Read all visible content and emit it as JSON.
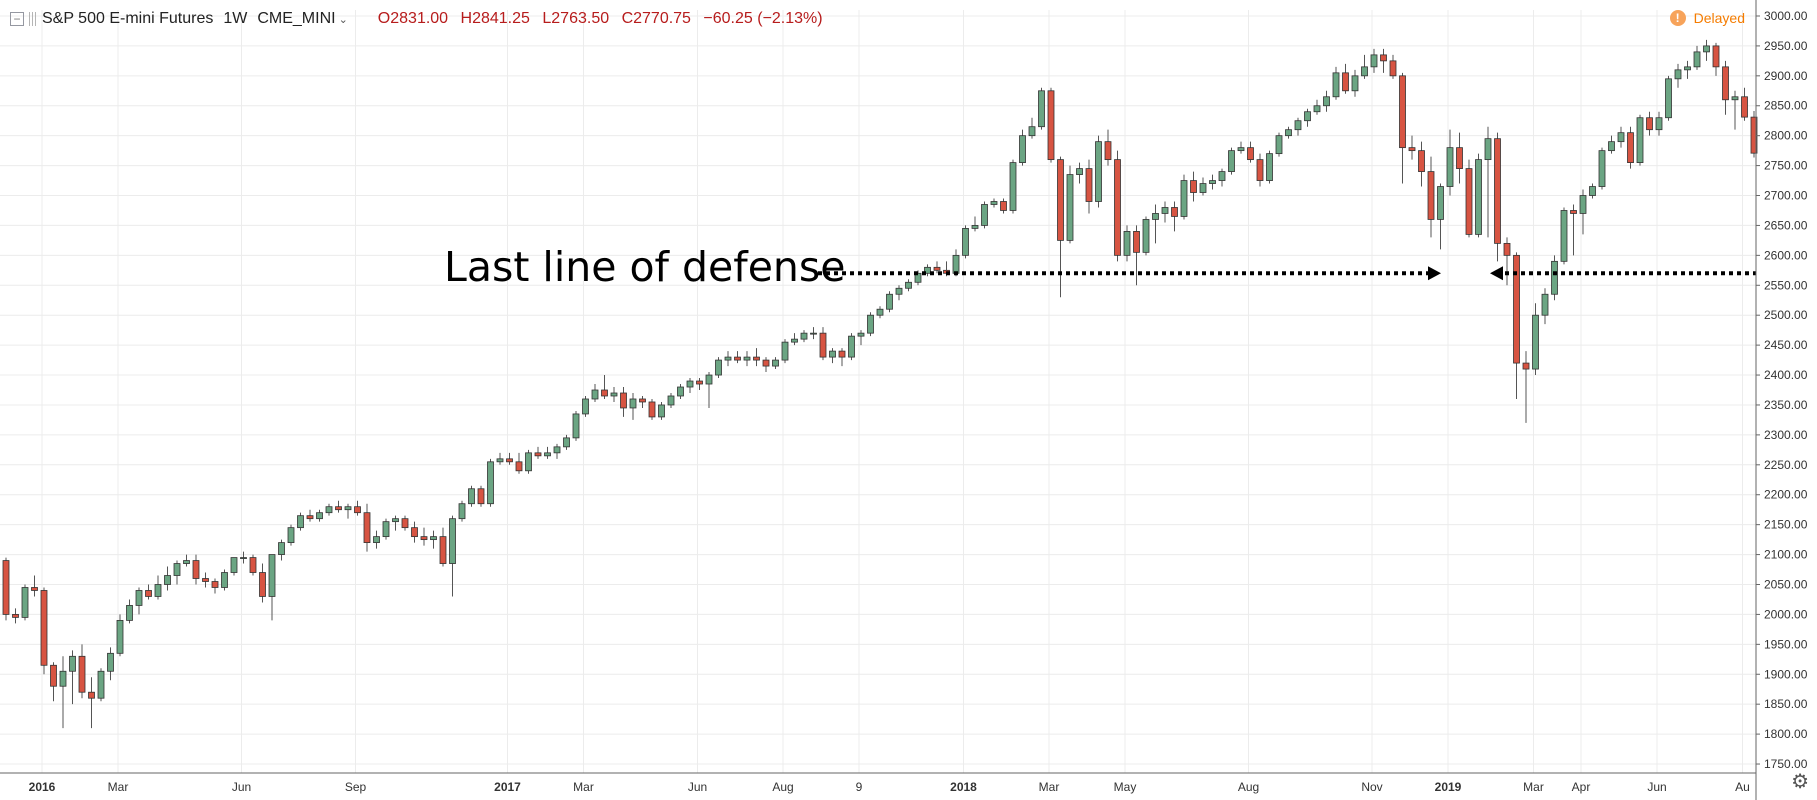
{
  "header": {
    "symbol": "S&P 500 E-mini Futures",
    "interval": "1W",
    "exchange": "CME_MINI",
    "open": "O2831.00",
    "high": "H2841.25",
    "low": "L2763.50",
    "close": "C2770.75",
    "change": "−60.25 (−2.13%)",
    "delayed_label": "Delayed",
    "delayed_icon": "!"
  },
  "colors": {
    "up": "#6ba583",
    "down": "#d75442",
    "grid": "#ececec",
    "ohlc_text": "#b71c1c",
    "delayed": "#f57c00"
  },
  "icons": {
    "collapse": "collapse-icon",
    "drag": "drag-handle-icon",
    "chevron": "chevron-down-icon",
    "delayed": "warning-icon",
    "settings": "gear-icon"
  },
  "chart_data": {
    "type": "candlestick",
    "title": "S&P 500 E-mini Futures · 1W · CME_MINI",
    "ylim": [
      1735,
      3010
    ],
    "y_ticks": [
      1750,
      1800,
      1850,
      1900,
      1950,
      2000,
      2050,
      2100,
      2150,
      2200,
      2250,
      2300,
      2350,
      2400,
      2450,
      2500,
      2550,
      2600,
      2650,
      2700,
      2750,
      2800,
      2850,
      2900,
      2950,
      3000
    ],
    "y_tick_labels": [
      "1750.00",
      "1800.00",
      "1850.00",
      "1900.00",
      "1950.00",
      "2000.00",
      "2050.00",
      "2100.00",
      "2150.00",
      "2200.00",
      "2250.00",
      "2300.00",
      "2350.00",
      "2400.00",
      "2450.00",
      "2500.00",
      "2550.00",
      "2600.00",
      "2650.00",
      "2700.00",
      "2750.00",
      "2800.00",
      "2850.00",
      "2900.00",
      "2950.00",
      "3000.00"
    ],
    "x_labels": [
      {
        "label": "2016",
        "week": 4,
        "major": true
      },
      {
        "label": "Mar",
        "week": 12,
        "major": false
      },
      {
        "label": "Jun",
        "week": 25,
        "major": false
      },
      {
        "label": "Sep",
        "week": 37,
        "major": false
      },
      {
        "label": "2017",
        "week": 53,
        "major": true
      },
      {
        "label": "Mar",
        "week": 61,
        "major": false
      },
      {
        "label": "Jun",
        "week": 73,
        "major": false
      },
      {
        "label": "Aug",
        "week": 82,
        "major": false
      },
      {
        "label": "9",
        "week": 90,
        "major": false
      },
      {
        "label": "2018",
        "week": 101,
        "major": true
      },
      {
        "label": "Mar",
        "week": 110,
        "major": false
      },
      {
        "label": "May",
        "week": 118,
        "major": false
      },
      {
        "label": "Aug",
        "week": 131,
        "major": false
      },
      {
        "label": "Nov",
        "week": 144,
        "major": false
      },
      {
        "label": "2019",
        "week": 152,
        "major": true
      },
      {
        "label": "Mar",
        "week": 161,
        "major": false
      },
      {
        "label": "Apr",
        "week": 166,
        "major": false
      },
      {
        "label": "Jun",
        "week": 174,
        "major": false
      },
      {
        "label": "Au",
        "week": 183,
        "major": false
      }
    ],
    "candles": [
      [
        2090,
        2095,
        1990,
        2000
      ],
      [
        2000,
        2010,
        1985,
        1995
      ],
      [
        1995,
        2050,
        1990,
        2045
      ],
      [
        2045,
        2065,
        2030,
        2040
      ],
      [
        2040,
        2045,
        1900,
        1915
      ],
      [
        1915,
        1920,
        1855,
        1880
      ],
      [
        1880,
        1930,
        1810,
        1905
      ],
      [
        1905,
        1940,
        1850,
        1930
      ],
      [
        1930,
        1950,
        1860,
        1870
      ],
      [
        1870,
        1895,
        1810,
        1860
      ],
      [
        1860,
        1910,
        1855,
        1905
      ],
      [
        1905,
        1945,
        1890,
        1935
      ],
      [
        1935,
        2000,
        1930,
        1990
      ],
      [
        1990,
        2025,
        1985,
        2015
      ],
      [
        2015,
        2045,
        2000,
        2040
      ],
      [
        2040,
        2050,
        2025,
        2030
      ],
      [
        2030,
        2065,
        2025,
        2050
      ],
      [
        2050,
        2080,
        2040,
        2065
      ],
      [
        2065,
        2090,
        2050,
        2085
      ],
      [
        2085,
        2100,
        2080,
        2090
      ],
      [
        2090,
        2100,
        2050,
        2060
      ],
      [
        2060,
        2070,
        2045,
        2055
      ],
      [
        2055,
        2060,
        2035,
        2045
      ],
      [
        2045,
        2075,
        2040,
        2070
      ],
      [
        2070,
        2095,
        2065,
        2095
      ],
      [
        2095,
        2105,
        2085,
        2095
      ],
      [
        2095,
        2100,
        2065,
        2070
      ],
      [
        2070,
        2085,
        2020,
        2030
      ],
      [
        2030,
        2100,
        1990,
        2100
      ],
      [
        2100,
        2125,
        2090,
        2120
      ],
      [
        2120,
        2150,
        2115,
        2145
      ],
      [
        2145,
        2170,
        2140,
        2165
      ],
      [
        2165,
        2175,
        2155,
        2160
      ],
      [
        2160,
        2175,
        2155,
        2170
      ],
      [
        2170,
        2185,
        2165,
        2180
      ],
      [
        2180,
        2190,
        2170,
        2175
      ],
      [
        2175,
        2185,
        2160,
        2180
      ],
      [
        2180,
        2190,
        2165,
        2170
      ],
      [
        2170,
        2185,
        2105,
        2120
      ],
      [
        2120,
        2140,
        2110,
        2130
      ],
      [
        2130,
        2160,
        2125,
        2155
      ],
      [
        2155,
        2165,
        2140,
        2160
      ],
      [
        2160,
        2165,
        2140,
        2145
      ],
      [
        2145,
        2155,
        2120,
        2130
      ],
      [
        2130,
        2145,
        2115,
        2125
      ],
      [
        2125,
        2140,
        2110,
        2130
      ],
      [
        2130,
        2145,
        2080,
        2085
      ],
      [
        2085,
        2165,
        2030,
        2160
      ],
      [
        2160,
        2190,
        2155,
        2185
      ],
      [
        2185,
        2215,
        2180,
        2210
      ],
      [
        2210,
        2215,
        2180,
        2185
      ],
      [
        2185,
        2260,
        2180,
        2255
      ],
      [
        2255,
        2270,
        2250,
        2260
      ],
      [
        2260,
        2270,
        2250,
        2255
      ],
      [
        2255,
        2270,
        2235,
        2240
      ],
      [
        2240,
        2275,
        2235,
        2270
      ],
      [
        2270,
        2280,
        2260,
        2265
      ],
      [
        2265,
        2280,
        2260,
        2270
      ],
      [
        2270,
        2285,
        2260,
        2280
      ],
      [
        2280,
        2300,
        2275,
        2295
      ],
      [
        2295,
        2340,
        2290,
        2335
      ],
      [
        2335,
        2365,
        2330,
        2360
      ],
      [
        2360,
        2385,
        2355,
        2375
      ],
      [
        2375,
        2400,
        2360,
        2365
      ],
      [
        2365,
        2380,
        2355,
        2370
      ],
      [
        2370,
        2380,
        2330,
        2345
      ],
      [
        2345,
        2370,
        2325,
        2360
      ],
      [
        2360,
        2365,
        2345,
        2355
      ],
      [
        2355,
        2360,
        2325,
        2330
      ],
      [
        2330,
        2355,
        2325,
        2350
      ],
      [
        2350,
        2370,
        2345,
        2365
      ],
      [
        2365,
        2385,
        2360,
        2380
      ],
      [
        2380,
        2395,
        2370,
        2390
      ],
      [
        2390,
        2395,
        2375,
        2385
      ],
      [
        2385,
        2405,
        2345,
        2400
      ],
      [
        2400,
        2430,
        2395,
        2425
      ],
      [
        2425,
        2440,
        2415,
        2430
      ],
      [
        2430,
        2440,
        2420,
        2425
      ],
      [
        2425,
        2440,
        2415,
        2430
      ],
      [
        2430,
        2445,
        2415,
        2425
      ],
      [
        2425,
        2430,
        2405,
        2415
      ],
      [
        2415,
        2430,
        2410,
        2425
      ],
      [
        2425,
        2460,
        2420,
        2455
      ],
      [
        2455,
        2470,
        2450,
        2460
      ],
      [
        2460,
        2475,
        2455,
        2470
      ],
      [
        2470,
        2480,
        2460,
        2470
      ],
      [
        2470,
        2480,
        2425,
        2430
      ],
      [
        2430,
        2445,
        2420,
        2440
      ],
      [
        2440,
        2445,
        2415,
        2430
      ],
      [
        2430,
        2470,
        2425,
        2465
      ],
      [
        2465,
        2475,
        2450,
        2470
      ],
      [
        2470,
        2505,
        2465,
        2500
      ],
      [
        2500,
        2515,
        2495,
        2510
      ],
      [
        2510,
        2540,
        2505,
        2535
      ],
      [
        2535,
        2550,
        2525,
        2545
      ],
      [
        2545,
        2560,
        2540,
        2555
      ],
      [
        2555,
        2575,
        2550,
        2570
      ],
      [
        2570,
        2585,
        2565,
        2580
      ],
      [
        2580,
        2590,
        2570,
        2575
      ],
      [
        2575,
        2590,
        2565,
        2570
      ],
      [
        2570,
        2610,
        2565,
        2600
      ],
      [
        2600,
        2650,
        2595,
        2645
      ],
      [
        2645,
        2665,
        2640,
        2650
      ],
      [
        2650,
        2690,
        2645,
        2685
      ],
      [
        2685,
        2695,
        2680,
        2690
      ],
      [
        2690,
        2695,
        2670,
        2675
      ],
      [
        2675,
        2760,
        2670,
        2755
      ],
      [
        2755,
        2810,
        2750,
        2800
      ],
      [
        2800,
        2830,
        2795,
        2815
      ],
      [
        2815,
        2880,
        2810,
        2875
      ],
      [
        2875,
        2880,
        2755,
        2760
      ],
      [
        2760,
        2765,
        2530,
        2625
      ],
      [
        2625,
        2750,
        2620,
        2735
      ],
      [
        2735,
        2755,
        2720,
        2745
      ],
      [
        2745,
        2760,
        2670,
        2690
      ],
      [
        2690,
        2800,
        2680,
        2790
      ],
      [
        2790,
        2810,
        2750,
        2760
      ],
      [
        2760,
        2775,
        2590,
        2600
      ],
      [
        2600,
        2650,
        2590,
        2640
      ],
      [
        2640,
        2650,
        2550,
        2605
      ],
      [
        2605,
        2665,
        2600,
        2660
      ],
      [
        2660,
        2685,
        2620,
        2670
      ],
      [
        2670,
        2690,
        2655,
        2680
      ],
      [
        2680,
        2690,
        2640,
        2665
      ],
      [
        2665,
        2735,
        2660,
        2725
      ],
      [
        2725,
        2740,
        2690,
        2705
      ],
      [
        2705,
        2730,
        2700,
        2720
      ],
      [
        2720,
        2735,
        2710,
        2725
      ],
      [
        2725,
        2745,
        2715,
        2740
      ],
      [
        2740,
        2780,
        2735,
        2775
      ],
      [
        2775,
        2790,
        2770,
        2780
      ],
      [
        2780,
        2790,
        2755,
        2760
      ],
      [
        2760,
        2770,
        2715,
        2725
      ],
      [
        2725,
        2775,
        2720,
        2770
      ],
      [
        2770,
        2805,
        2765,
        2800
      ],
      [
        2800,
        2815,
        2795,
        2810
      ],
      [
        2810,
        2830,
        2800,
        2825
      ],
      [
        2825,
        2845,
        2815,
        2840
      ],
      [
        2840,
        2860,
        2835,
        2850
      ],
      [
        2850,
        2875,
        2840,
        2865
      ],
      [
        2865,
        2915,
        2860,
        2905
      ],
      [
        2905,
        2920,
        2870,
        2875
      ],
      [
        2875,
        2910,
        2865,
        2900
      ],
      [
        2900,
        2935,
        2895,
        2915
      ],
      [
        2915,
        2945,
        2905,
        2935
      ],
      [
        2935,
        2945,
        2905,
        2925
      ],
      [
        2925,
        2935,
        2895,
        2900
      ],
      [
        2900,
        2905,
        2720,
        2780
      ],
      [
        2780,
        2800,
        2760,
        2775
      ],
      [
        2775,
        2790,
        2715,
        2740
      ],
      [
        2740,
        2765,
        2630,
        2660
      ],
      [
        2660,
        2720,
        2610,
        2715
      ],
      [
        2715,
        2810,
        2700,
        2780
      ],
      [
        2780,
        2805,
        2720,
        2745
      ],
      [
        2745,
        2760,
        2630,
        2635
      ],
      [
        2635,
        2770,
        2630,
        2760
      ],
      [
        2760,
        2815,
        2630,
        2795
      ],
      [
        2795,
        2805,
        2590,
        2620
      ],
      [
        2620,
        2630,
        2550,
        2600
      ],
      [
        2600,
        2605,
        2360,
        2420
      ],
      [
        2420,
        2440,
        2320,
        2410
      ],
      [
        2410,
        2520,
        2400,
        2500
      ],
      [
        2500,
        2545,
        2485,
        2535
      ],
      [
        2535,
        2600,
        2525,
        2590
      ],
      [
        2590,
        2680,
        2585,
        2675
      ],
      [
        2675,
        2685,
        2600,
        2670
      ],
      [
        2670,
        2710,
        2635,
        2700
      ],
      [
        2700,
        2720,
        2695,
        2715
      ],
      [
        2715,
        2780,
        2710,
        2775
      ],
      [
        2775,
        2800,
        2770,
        2790
      ],
      [
        2790,
        2815,
        2780,
        2805
      ],
      [
        2805,
        2815,
        2745,
        2755
      ],
      [
        2755,
        2835,
        2750,
        2830
      ],
      [
        2830,
        2840,
        2800,
        2810
      ],
      [
        2810,
        2840,
        2800,
        2830
      ],
      [
        2830,
        2900,
        2825,
        2895
      ],
      [
        2895,
        2920,
        2880,
        2910
      ],
      [
        2910,
        2925,
        2895,
        2915
      ],
      [
        2915,
        2950,
        2910,
        2940
      ],
      [
        2940,
        2960,
        2925,
        2950
      ],
      [
        2950,
        2955,
        2900,
        2915
      ],
      [
        2915,
        2925,
        2835,
        2860
      ],
      [
        2860,
        2875,
        2810,
        2865
      ],
      [
        2865,
        2880,
        2825,
        2831
      ],
      [
        2831,
        2841.25,
        2763.5,
        2770.75
      ]
    ],
    "annotation": {
      "text": "Last line of defense",
      "level": 2570
    }
  }
}
